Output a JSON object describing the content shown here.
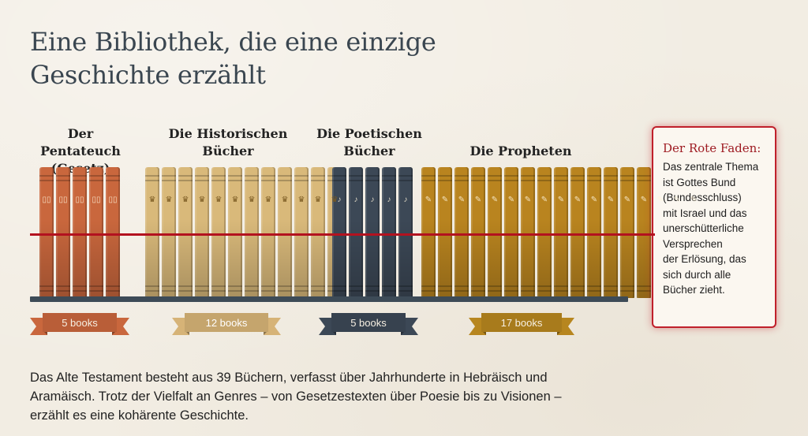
{
  "title_lines": [
    "Eine Bibliothek, die eine einzige",
    "Geschichte erzählt"
  ],
  "groups": [
    {
      "title_lines": [
        "Der Pentateuch",
        "(Gesetz)"
      ],
      "count_label": "5 books",
      "books": 5,
      "color": "#c9673d",
      "ribbon_color": "#c9673d",
      "icon": "tablets-icon",
      "symbol": "▯▯"
    },
    {
      "title_lines": [
        "Die Historischen",
        "Bücher"
      ],
      "count_label": "12 books",
      "books": 12,
      "color": "#d9b97a",
      "ribbon_color": "#d6b377",
      "icon": "crown-icon",
      "symbol": "♛"
    },
    {
      "title_lines": [
        "Die Poetischen",
        "Bücher"
      ],
      "count_label": "5 books",
      "books": 5,
      "color": "#3c4856",
      "ribbon_color": "#3c4856",
      "icon": "harp-icon",
      "symbol": "♪"
    },
    {
      "title_lines": [
        "Die Propheten"
      ],
      "count_label": "17 books",
      "books": 17,
      "color": "#b9841f",
      "ribbon_color": "#b7861f",
      "icon": "scroll-icon",
      "symbol": "✎"
    }
  ],
  "callout": {
    "heading": "Der Rote Faden:",
    "lines": [
      "Das zentrale Thema",
      "ist Gottes Bund",
      "(Bundesschluss)",
      "mit Israel und das",
      "unerschütterliche",
      "Versprechen",
      "der Erlösung, das",
      "sich durch alle",
      "Bücher zieht."
    ]
  },
  "footer_lines": [
    "Das Alte Testament besteht aus 39 Büchern, verfasst über Jahrhunderte in Hebräisch und",
    "Aramäisch. Trotz der Vielfalt an Genres – von Gesetzestexten über Poesie bis zu Visionen –",
    "erzählt es eine kohärente Geschichte."
  ],
  "colors": {
    "accent_red": "#b3121f",
    "shelf": "#3d4b57",
    "title": "#3a4650"
  }
}
